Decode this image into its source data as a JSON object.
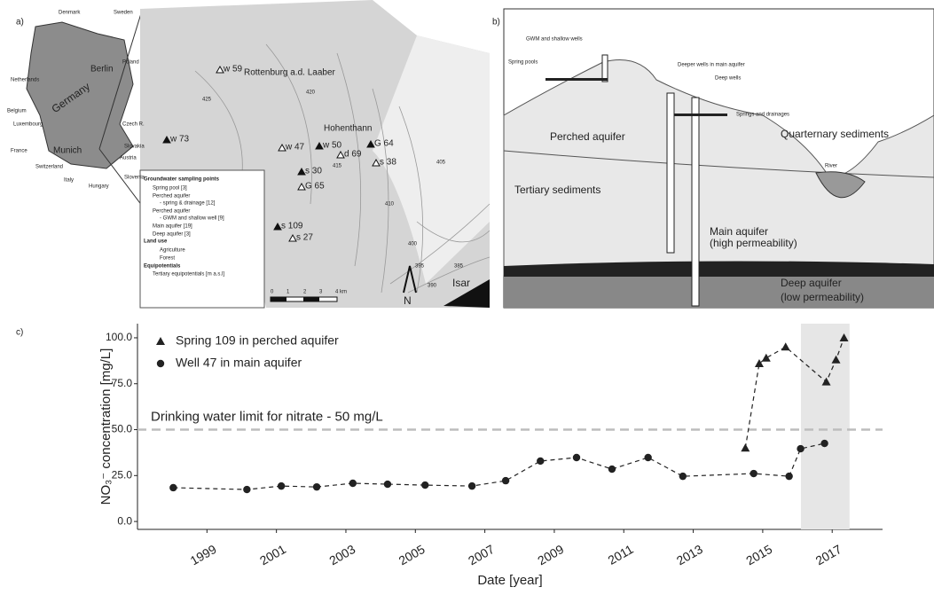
{
  "panels": {
    "a": "a)",
    "b": "b)",
    "c": "c)"
  },
  "map": {
    "inset_labels": [
      "Denmark",
      "Sweden",
      "Netherlands",
      "Berlin",
      "Poland",
      "Belgium",
      "Germany",
      "Luxembourg",
      "Czech R.",
      "France",
      "Munich",
      "Slovakia",
      "Austria",
      "Switzerland",
      "Italy",
      "Hungary",
      "Slovenia"
    ],
    "place_labels": [
      "Rottenburg a.d. Laaber",
      "Hohenthann",
      "Isar",
      "N"
    ],
    "site_labels": [
      "w 59",
      "w 73",
      "w 47",
      "w 50",
      "d 69",
      "G 64",
      "s 38",
      "s 30",
      "G 65",
      "s 109",
      "s 27"
    ],
    "contour_labels": [
      "420",
      "425",
      "415",
      "410",
      "405",
      "400",
      "395",
      "390",
      "385"
    ],
    "legend": [
      "Groundwater sampling points",
      "Spring pool [3]",
      "Perched aquifer",
      "- spring & drainage [12]",
      "Perched aquifer",
      "- GWM and shallow well [9]",
      "Main aquifer [19]",
      "Deep aquifer [3]",
      "Land use",
      "Agriculture",
      "Forest",
      "Equipotentials",
      "Tertiary equipotentials [m a.s.l]"
    ],
    "scale": [
      "0",
      "1",
      "2",
      "3",
      "4 km"
    ]
  },
  "diagram": {
    "labels": [
      "GWM and shallow wells",
      "Spring pools",
      "Deeper wells in main aquifer",
      "Deep wells",
      "Springs and drainages",
      "Perched aquifer",
      "Quarternary sediments",
      "River",
      "Tertiary sediments",
      "Main aquifer",
      "(high permeability)",
      "Deep aquifer",
      "(low permeability)"
    ]
  },
  "chart_data": {
    "type": "line",
    "x_label": "Date [year]",
    "y_label": "NO₃⁻ concentration [mg/L]",
    "xlim": [
      1997,
      2018.45
    ],
    "ylim": [
      -4.3,
      107.7
    ],
    "xticks": [
      1999,
      2001,
      2003,
      2005,
      2007,
      2009,
      2011,
      2013,
      2015,
      2017
    ],
    "yticks": [
      {
        "value": 0,
        "label": "0.0"
      },
      {
        "value": 25,
        "label": "25.0"
      },
      {
        "value": 50,
        "label": "50.0"
      },
      {
        "value": 75,
        "label": "75.0"
      },
      {
        "value": 100,
        "label": "100.0"
      }
    ],
    "threshold": {
      "value": 50,
      "label": "Drinking water limit for nitrate - 50 mg/L",
      "color": "#bdbdbd"
    },
    "highlight": {
      "x": [
        2016.1,
        2017.5
      ],
      "color": "#e6e6e6"
    },
    "series": [
      {
        "name": "Spring 109 in perched aquifer",
        "marker": "triangle",
        "color": "#222222",
        "x": [
          2014.5,
          2014.9,
          2015.1,
          2015.66,
          2016.83,
          2017.11,
          2017.34
        ],
        "values": [
          40,
          86,
          89,
          95,
          76,
          88,
          100
        ]
      },
      {
        "name": "Well 47 in main aquifer",
        "marker": "circle",
        "color": "#222222",
        "x": [
          1998.03,
          2000.15,
          2001.14,
          2002.16,
          2003.2,
          2004.2,
          2005.28,
          2006.63,
          2007.6,
          2008.6,
          2009.64,
          2010.66,
          2011.7,
          2012.7,
          2014.74,
          2015.76,
          2016.09,
          2016.78
        ],
        "values": [
          18.4,
          17.4,
          19.3,
          18.8,
          20.8,
          20.3,
          19.8,
          19.3,
          22.2,
          32.9,
          34.8,
          28.5,
          34.8,
          24.6,
          26.1,
          24.6,
          39.6,
          42.5
        ]
      }
    ]
  }
}
